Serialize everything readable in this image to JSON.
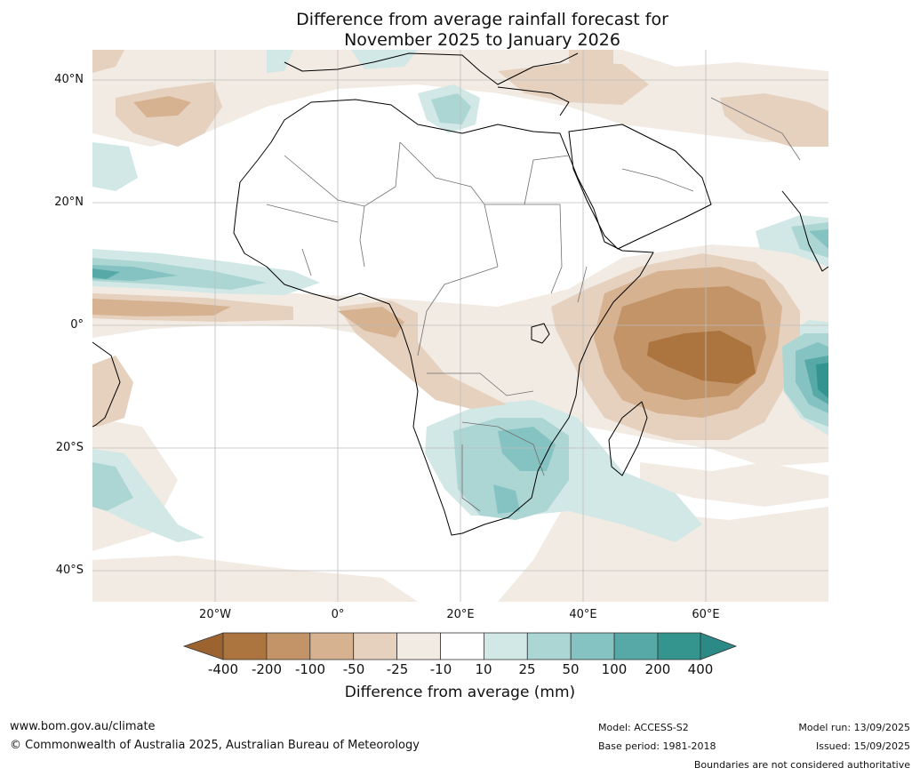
{
  "title": {
    "line1": "Difference from average rainfall forecast for",
    "line2": "November 2025 to January 2026"
  },
  "axes": {
    "lat_labels": [
      "40°N",
      "20°N",
      "0°",
      "20°S",
      "40°S"
    ],
    "lon_labels": [
      "20°W",
      "0°",
      "20°E",
      "40°E",
      "60°E"
    ]
  },
  "colorbar": {
    "title": "Difference from average (mm)",
    "tick_labels": [
      "-400",
      "-200",
      "-100",
      "-50",
      "-25",
      "-10",
      "10",
      "25",
      "50",
      "100",
      "200",
      "400"
    ],
    "colors": [
      "#9c6330",
      "#ac7540",
      "#c39467",
      "#d6b291",
      "#e6d1bf",
      "#f2ebe3",
      "#ffffff",
      "#d2e8e6",
      "#acd6d4",
      "#85c3c2",
      "#57a9a7",
      "#34958f",
      "#2b8a86"
    ]
  },
  "footer": {
    "website": "www.bom.gov.au/climate",
    "copyright": "© Commonwealth of Australia 2025, Australian Bureau of Meteorology",
    "model": "Model: ACCESS-S2",
    "base_period": "Base period: 1981-2018",
    "model_run": "Model run: 13/09/2025",
    "issued": "Issued: 15/09/2025",
    "disclaimer": "Boundaries are not considered authoritative"
  }
}
